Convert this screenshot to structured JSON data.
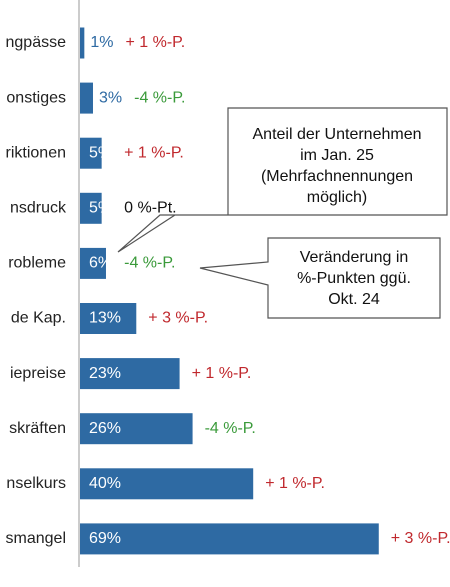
{
  "chart_data": {
    "type": "bar",
    "orientation": "horizontal",
    "categories": [
      "ngpässe",
      "onstiges",
      "riktionen",
      "nsdruck",
      "robleme",
      "de Kap.",
      "iepreise",
      "skräften",
      "nselkurs",
      "smangel"
    ],
    "values": [
      1,
      3,
      5,
      5,
      6,
      13,
      23,
      26,
      40,
      69
    ],
    "value_labels": [
      "1%",
      "3%",
      "5%",
      "5%",
      "6%",
      "13%",
      "23%",
      "26%",
      "40%",
      "69%"
    ],
    "change_labels": [
      "+ 1 %-P.",
      "-4 %-P.",
      "+ 1 %-P.",
      "0 %-Pt.",
      "-4 %-P.",
      "+ 3 %-P.",
      "+ 1 %-P.",
      "-4 %-P.",
      "+ 1 %-P.",
      "+ 3 %-P."
    ],
    "change_colors": [
      "#c0282d",
      "#3a9a3a",
      "#c0282d",
      "#111111",
      "#3a9a3a",
      "#c0282d",
      "#c0282d",
      "#3a9a3a",
      "#c0282d",
      "#c0282d"
    ],
    "color": "#2e6aa3",
    "callouts": [
      [
        "Anteil der Unternehmen",
        "im Jan. 25",
        "(Mehrfachnennungen",
        "möglich)"
      ],
      [
        "Veränderung in",
        "%-Punkten ggü.",
        "Okt. 24"
      ]
    ]
  }
}
